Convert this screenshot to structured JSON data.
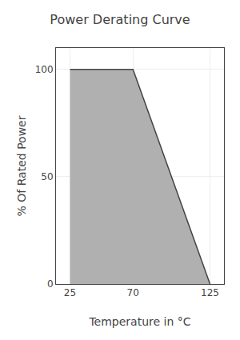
{
  "chart_data": {
    "type": "area",
    "title": "Power Derating Curve",
    "x": [
      25,
      70,
      125
    ],
    "values": [
      100,
      100,
      0
    ],
    "color": "#B0B0B0",
    "xlabel": "Temperature in °C",
    "ylabel": "% Of Rated Power",
    "xlim": [
      15,
      135
    ],
    "xticks": [
      25,
      70,
      125
    ],
    "ylim": [
      0,
      110
    ],
    "yticks": [
      0,
      50,
      100
    ],
    "grid": true
  }
}
